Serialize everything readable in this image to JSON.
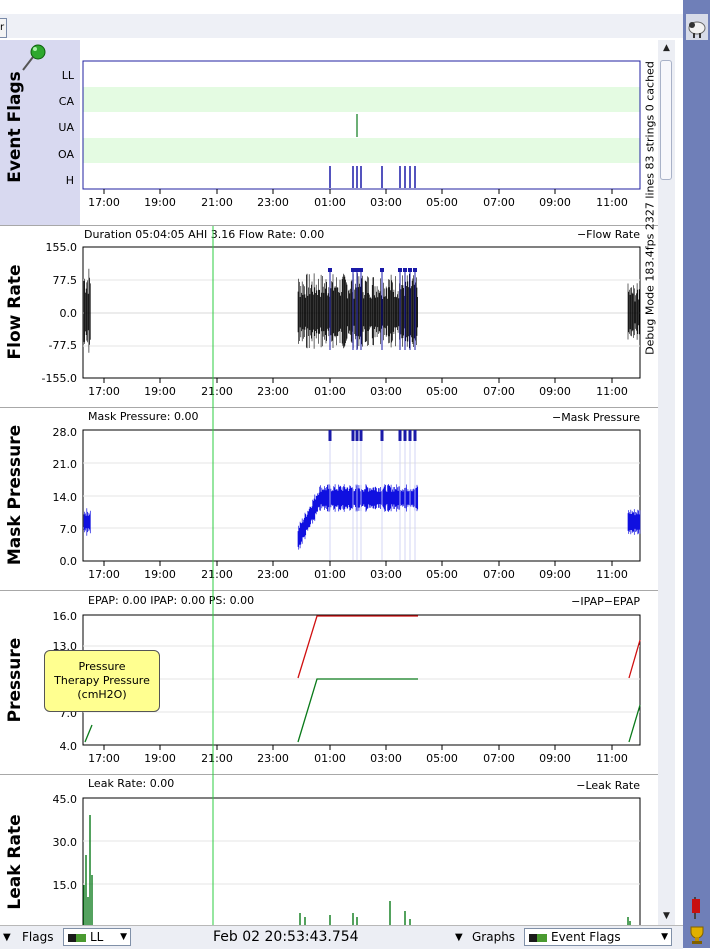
{
  "toolbar": {
    "tab_stub": "r"
  },
  "time_ticks": [
    "17:00",
    "19:00",
    "21:00",
    "23:00",
    "01:00",
    "03:00",
    "05:00",
    "07:00",
    "09:00",
    "11:00"
  ],
  "debug_text": "Debug Mode 183.4fps 2327 lines 83 strings 0 cached",
  "event_flags": {
    "title": "Event Flags",
    "rows": [
      "LL",
      "CA",
      "UA",
      "OA",
      "H"
    ],
    "colors": {
      "highlight_row": "#e4fbe2",
      "ua": "#0a7a1a",
      "h": "#1a1aa8"
    }
  },
  "flow_rate": {
    "title": "Flow Rate",
    "info": "Duration 05:04:05 AHI 3.16 Flow Rate: 0.00",
    "legend": "Flow Rate",
    "yticks": [
      "155.0",
      "77.5",
      "0.0",
      "-77.5",
      "-155.0"
    ],
    "color": "#000000"
  },
  "mask_pressure": {
    "title": "Mask Pressure",
    "info": "Mask Pressure: 0.00",
    "legend": "Mask Pressure",
    "yticks": [
      "28.0",
      "21.0",
      "14.0",
      "7.0",
      "0.0"
    ],
    "color": "#1010e0"
  },
  "pressure": {
    "title": "Pressure",
    "info": "EPAP: 0.00 IPAP: 0.00 PS: 0.00",
    "legend_ipap": "IPAP",
    "legend_epap": "EPAP",
    "yticks": [
      "16.0",
      "13.0",
      "",
      "7.0",
      "4.0"
    ],
    "colors": {
      "ipap": "#d01010",
      "epap": "#0a7a1a"
    },
    "tooltip": [
      "Pressure",
      "Therapy Pressure",
      "(cmH2O)"
    ]
  },
  "leak_rate": {
    "title": "Leak Rate",
    "info": "Leak Rate: 0.00",
    "legend": "Leak Rate",
    "yticks": [
      "45.0",
      "30.0",
      "15.0"
    ],
    "color": "#0a7a1a"
  },
  "bottom": {
    "flags_label": "Flags",
    "flags_value": "LL",
    "date_time": "Feb 02 20:53:43.754",
    "graphs_label": "Graphs",
    "graphs_value": "Event Flags"
  }
}
